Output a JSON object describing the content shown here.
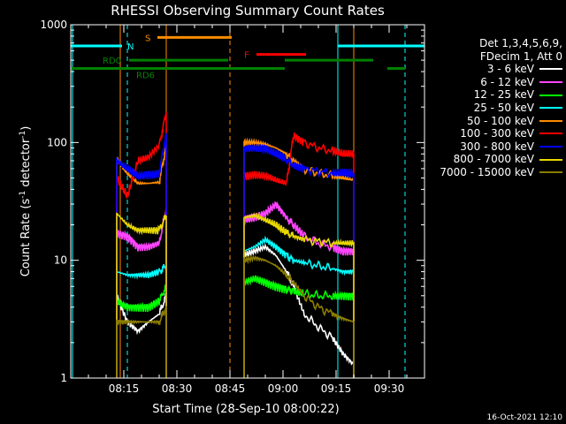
{
  "title": "RHESSI Observing Summary Count Rates",
  "timestamp": "16-Oct-2021 12:10",
  "chart_data": {
    "type": "line",
    "title": "RHESSI Observing Summary Count Rates",
    "xlabel": "Start Time (28-Sep-10 08:00:22)",
    "ylabel_main": "Count Rate (s",
    "ylabel_sup": "-1",
    "ylabel_tail": " detector",
    "ylabel_close": ")",
    "x_unit": "minutes after 08:00",
    "xlim": [
      0,
      100
    ],
    "ylim": [
      1,
      1000
    ],
    "yscale": "log",
    "x_ticks": [
      {
        "v": 15,
        "label": "08:15"
      },
      {
        "v": 30,
        "label": "08:30"
      },
      {
        "v": 45,
        "label": "08:45"
      },
      {
        "v": 60,
        "label": "09:00"
      },
      {
        "v": 75,
        "label": "09:15"
      },
      {
        "v": 90,
        "label": "09:30"
      }
    ],
    "y_ticks": [
      {
        "v": 1,
        "label": "1"
      },
      {
        "v": 10,
        "label": "10"
      },
      {
        "v": 100,
        "label": "100"
      },
      {
        "v": 1000,
        "label": "1000"
      }
    ],
    "legend_header": [
      "Det 1,3,4,5,6,9,",
      "FDecim 1, Att 0"
    ],
    "series": [
      {
        "name": "3 - 6 keV",
        "color": "#ffffff",
        "segments": [
          [
            [
              13,
              5
            ],
            [
              16,
              3
            ],
            [
              19,
              2.5
            ],
            [
              22,
              3
            ],
            [
              25,
              3.5
            ],
            [
              27,
              5
            ]
          ],
          [
            [
              49,
              11
            ],
            [
              52,
              12
            ],
            [
              55,
              13
            ],
            [
              58,
              11
            ],
            [
              61,
              8
            ],
            [
              63,
              6
            ],
            [
              66,
              3.5
            ],
            [
              70,
              2.7
            ],
            [
              74,
              2.2
            ],
            [
              77,
              1.6
            ],
            [
              80,
              1.3
            ]
          ]
        ]
      },
      {
        "name": "6 - 12 keV",
        "color": "#ff44ff",
        "segments": [
          [
            [
              13,
              17
            ],
            [
              16,
              16
            ],
            [
              19,
              13
            ],
            [
              22,
              13
            ],
            [
              25,
              14
            ],
            [
              27,
              28
            ]
          ],
          [
            [
              49,
              22
            ],
            [
              52,
              23
            ],
            [
              55,
              25
            ],
            [
              58,
              30
            ],
            [
              61,
              23
            ],
            [
              63,
              20
            ],
            [
              66,
              16
            ],
            [
              70,
              14
            ],
            [
              74,
              13
            ],
            [
              77,
              12
            ],
            [
              80,
              12
            ]
          ]
        ]
      },
      {
        "name": "12 - 25 keV",
        "color": "#00ff00",
        "segments": [
          [
            [
              13,
              4.5
            ],
            [
              16,
              4
            ],
            [
              19,
              4
            ],
            [
              22,
              4
            ],
            [
              25,
              4.5
            ],
            [
              27,
              6
            ]
          ],
          [
            [
              49,
              6.5
            ],
            [
              52,
              7
            ],
            [
              55,
              6.5
            ],
            [
              58,
              6
            ],
            [
              61,
              5.7
            ],
            [
              63,
              5.5
            ],
            [
              66,
              5.2
            ],
            [
              70,
              5
            ],
            [
              74,
              5
            ],
            [
              77,
              5
            ],
            [
              80,
              5
            ]
          ]
        ]
      },
      {
        "name": "25 - 50 keV",
        "color": "#00ffff",
        "segments": [
          [
            [
              13,
              8
            ],
            [
              16,
              7.5
            ],
            [
              19,
              7.5
            ],
            [
              22,
              7.5
            ],
            [
              25,
              8
            ],
            [
              27,
              9
            ]
          ],
          [
            [
              49,
              12
            ],
            [
              52,
              13
            ],
            [
              55,
              15
            ],
            [
              58,
              13
            ],
            [
              61,
              11
            ],
            [
              63,
              10
            ],
            [
              66,
              9.5
            ],
            [
              70,
              9
            ],
            [
              74,
              8.5
            ],
            [
              77,
              8
            ],
            [
              80,
              8
            ]
          ]
        ]
      },
      {
        "name": "50 - 100 keV",
        "color": "#ff8c00",
        "segments": [
          [
            [
              13,
              72
            ],
            [
              16,
              55
            ],
            [
              19,
              45
            ],
            [
              22,
              45
            ],
            [
              25,
              46
            ],
            [
              27,
              95
            ]
          ],
          [
            [
              49,
              100
            ],
            [
              52,
              100
            ],
            [
              55,
              97
            ],
            [
              58,
              90
            ],
            [
              61,
              80
            ],
            [
              63,
              70
            ],
            [
              66,
              60
            ],
            [
              70,
              55
            ],
            [
              74,
              52
            ],
            [
              77,
              50
            ],
            [
              80,
              48
            ]
          ]
        ]
      },
      {
        "name": "100 - 300 keV",
        "color": "#ff0000",
        "segments": [
          [
            [
              13,
              50
            ],
            [
              16,
              35
            ],
            [
              19,
              70
            ],
            [
              22,
              75
            ],
            [
              25,
              95
            ],
            [
              27,
              180
            ]
          ],
          [
            [
              49,
              52
            ],
            [
              52,
              53
            ],
            [
              55,
              52
            ],
            [
              58,
              48
            ],
            [
              61,
              45
            ],
            [
              63,
              115
            ],
            [
              66,
              100
            ],
            [
              70,
              90
            ],
            [
              74,
              85
            ],
            [
              77,
              80
            ],
            [
              80,
              80
            ]
          ]
        ]
      },
      {
        "name": "300 - 800 keV",
        "color": "#0000ff",
        "segments": [
          [
            [
              13,
              70
            ],
            [
              16,
              60
            ],
            [
              19,
              52
            ],
            [
              22,
              53
            ],
            [
              25,
              55
            ],
            [
              27,
              120
            ]
          ],
          [
            [
              49,
              88
            ],
            [
              52,
              90
            ],
            [
              55,
              88
            ],
            [
              58,
              80
            ],
            [
              61,
              72
            ],
            [
              63,
              65
            ],
            [
              66,
              60
            ],
            [
              70,
              57
            ],
            [
              74,
              55
            ],
            [
              77,
              55
            ],
            [
              80,
              55
            ]
          ]
        ]
      },
      {
        "name": "800 - 7000 keV",
        "color": "#e8d800",
        "segments": [
          [
            [
              13,
              25
            ],
            [
              16,
              20
            ],
            [
              19,
              18
            ],
            [
              22,
              18
            ],
            [
              25,
              18
            ],
            [
              27,
              24
            ]
          ],
          [
            [
              49,
              23
            ],
            [
              52,
              24
            ],
            [
              55,
              22
            ],
            [
              58,
              20
            ],
            [
              61,
              17
            ],
            [
              63,
              16
            ],
            [
              66,
              15
            ],
            [
              70,
              14.5
            ],
            [
              74,
              14
            ],
            [
              77,
              14
            ],
            [
              80,
              14
            ]
          ]
        ]
      },
      {
        "name": "7000 - 15000 keV",
        "color": "#8b7d00",
        "segments": [
          [
            [
              13,
              3
            ],
            [
              16,
              3
            ],
            [
              19,
              3
            ],
            [
              22,
              3
            ],
            [
              25,
              3
            ],
            [
              27,
              4
            ]
          ],
          [
            [
              49,
              10
            ],
            [
              52,
              10.5
            ],
            [
              55,
              10
            ],
            [
              58,
              9
            ],
            [
              61,
              7.5
            ],
            [
              63,
              6.5
            ],
            [
              66,
              5
            ],
            [
              70,
              4
            ],
            [
              74,
              3.5
            ],
            [
              77,
              3.2
            ],
            [
              80,
              3
            ]
          ]
        ]
      }
    ],
    "flags": [
      {
        "label": "N",
        "color": "#00ffff",
        "y": 660,
        "segments": [
          [
            0,
            14.5
          ],
          [
            75.5,
            100
          ]
        ]
      },
      {
        "label": "S",
        "color": "#ff8c00",
        "y": 780,
        "segments": [
          [
            24.5,
            45.5
          ]
        ]
      },
      {
        "label": "F",
        "color": "#ff0000",
        "y": 560,
        "segments": [
          [
            52.5,
            66.5
          ]
        ]
      },
      {
        "label": "RD0",
        "color": "#008000",
        "y": 500,
        "segments": [
          [
            16.5,
            44.5
          ],
          [
            60.5,
            85.5
          ]
        ]
      },
      {
        "label": "RD6",
        "color": "#008000",
        "y": 425,
        "segments": [
          [
            0,
            17.5
          ],
          [
            17.5,
            44.5
          ],
          [
            44.5,
            60.5
          ],
          [
            89.5,
            94.5
          ]
        ]
      }
    ],
    "vlines": [
      {
        "x": 0.5,
        "color": "#00ffff",
        "style": "solid"
      },
      {
        "x": 14,
        "color": "#ff8c00",
        "style": "solid"
      },
      {
        "x": 16,
        "color": "#00ffff",
        "style": "dashed"
      },
      {
        "x": 27,
        "color": "#ff8c00",
        "style": "solid"
      },
      {
        "x": 45,
        "color": "#ff8c00",
        "style": "dashed"
      },
      {
        "x": 75.5,
        "color": "#00ffff",
        "style": "solid"
      },
      {
        "x": 80,
        "color": "#ff8c00",
        "style": "solid"
      },
      {
        "x": 94.5,
        "color": "#00ffff",
        "style": "dashed"
      }
    ]
  }
}
